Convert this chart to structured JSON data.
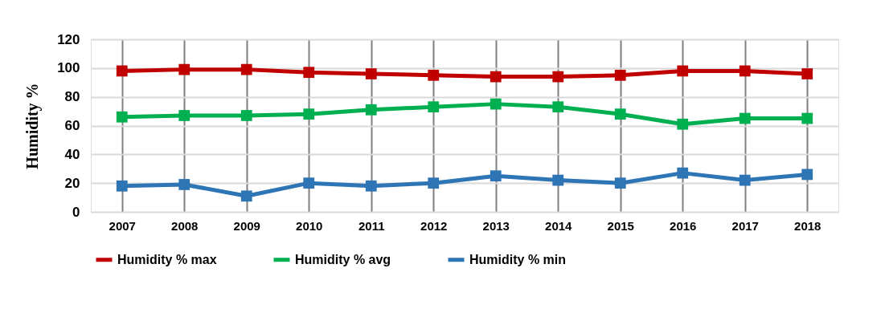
{
  "chart_data": {
    "type": "line",
    "ylabel": "Humidity  %",
    "categories": [
      "2007",
      "2008",
      "2009",
      "2010",
      "2011",
      "2012",
      "2013",
      "2014",
      "2015",
      "2016",
      "2017",
      "2018"
    ],
    "series": [
      {
        "name": "Humidity % max",
        "color": "#c00000",
        "values": [
          98,
          99,
          99,
          97,
          96,
          95,
          94,
          94,
          95,
          98,
          98,
          96
        ]
      },
      {
        "name": "Humidity % avg",
        "color": "#00b050",
        "values": [
          66,
          67,
          67,
          68,
          71,
          73,
          75,
          73,
          68,
          61,
          65,
          65
        ]
      },
      {
        "name": "Humidity % min",
        "color": "#2e75b6",
        "values": [
          18,
          19,
          11,
          20,
          18,
          20,
          25,
          22,
          20,
          27,
          22,
          26
        ]
      }
    ],
    "ylim": [
      0,
      120
    ],
    "yticks": [
      0,
      20,
      40,
      60,
      80,
      100,
      120
    ],
    "grid": true,
    "legend": "bottom",
    "marker": "square",
    "line_style": "solid"
  }
}
